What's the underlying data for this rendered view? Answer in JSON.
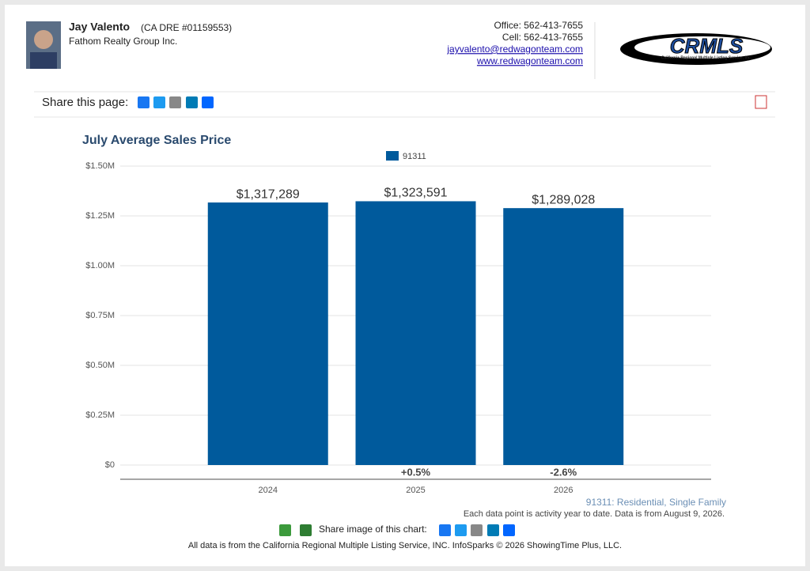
{
  "header": {
    "name": "Jay Valento",
    "license": "(CA DRE #01159553)",
    "company": "Fathom Realty Group Inc.",
    "office": "Office: 562-413-7655",
    "cell": "Cell: 562-413-7655",
    "email": "jayvalento@redwagonteam.com",
    "website": "www.redwagonteam.com",
    "logo_text": "CRMLS",
    "logo_subtitle": "California Regional Multiple Listing Service, Inc."
  },
  "share": {
    "label": "Share this page:"
  },
  "chart_data": {
    "type": "bar",
    "title": "July Average Sales Price",
    "categories": [
      "2024",
      "2025",
      "2026"
    ],
    "series": [
      {
        "name": "91311",
        "color": "#005a9c",
        "values": [
          1317289,
          1323591,
          1289028
        ],
        "value_labels": [
          "$1,317,289",
          "$1,323,591",
          "$1,289,028"
        ]
      }
    ],
    "change_labels": [
      null,
      "+0.5%",
      "-2.6%"
    ],
    "ylim": [
      0,
      1500000
    ],
    "yticks": [
      {
        "value": 0,
        "label": "$0"
      },
      {
        "value": 250000,
        "label": "$0.25M"
      },
      {
        "value": 500000,
        "label": "$0.50M"
      },
      {
        "value": 750000,
        "label": "$0.75M"
      },
      {
        "value": 1000000,
        "label": "$1.00M"
      },
      {
        "value": 1250000,
        "label": "$1.25M"
      },
      {
        "value": 1500000,
        "label": "$1.50M"
      }
    ],
    "grid": true,
    "legend": "top",
    "subtitle": "91311: Residential, Single Family",
    "note": "Each data point is activity year to date. Data is from August 9, 2026."
  },
  "footer": {
    "share_image": "Share image of this chart:",
    "source": "All data is from the California Regional Multiple Listing Service, INC. InfoSparks © 2026 ShowingTime Plus, LLC."
  }
}
